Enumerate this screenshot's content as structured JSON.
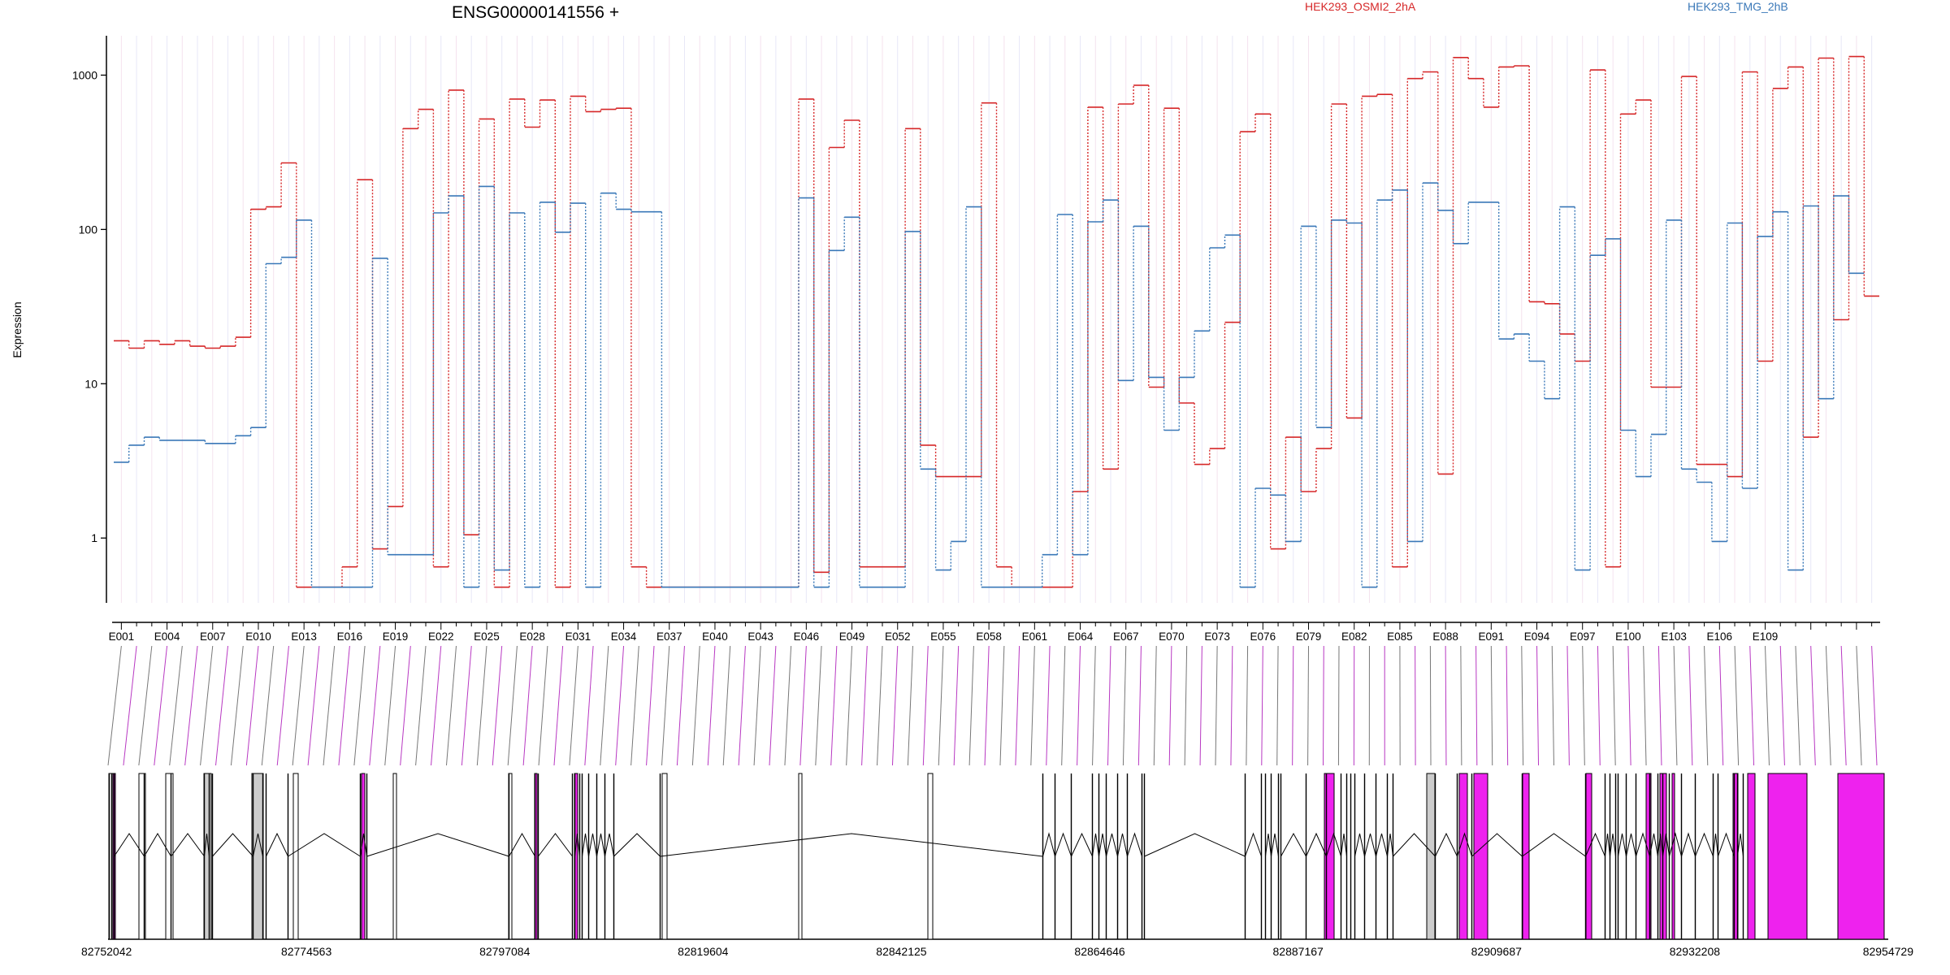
{
  "chart_data": {
    "type": "line",
    "title": "ENSG00000141556 +",
    "ylabel": "Expression",
    "xlabel": "",
    "y_scale": "log",
    "ylim": [
      0.38,
      1800
    ],
    "y_ticks": [
      1,
      10,
      100,
      1000
    ],
    "y_tick_labels": [
      "1",
      "10",
      "100",
      "1000"
    ],
    "x_tick_labels": [
      "E001",
      "E004",
      "E007",
      "E010",
      "E013",
      "E016",
      "E019",
      "E022",
      "E025",
      "E028",
      "E031",
      "E034",
      "E037",
      "E040",
      "E043",
      "E046",
      "E049",
      "E052",
      "E055",
      "E058",
      "E061",
      "E064",
      "E067",
      "E070",
      "E073",
      "E076",
      "E079",
      "E082",
      "E085",
      "E088",
      "E091",
      "E094",
      "E097",
      "E100",
      "E103",
      "E106",
      "E109"
    ],
    "series": [
      {
        "name": "HEK293_OSMI2_2hA",
        "color": "#d62728",
        "values": [
          19,
          17,
          19,
          18,
          19,
          17.5,
          17,
          17.5,
          20,
          135,
          140,
          270,
          0.48,
          0.48,
          0.48,
          0.65,
          210,
          0.85,
          1.6,
          450,
          600,
          0.65,
          800,
          1.05,
          520,
          0.48,
          700,
          460,
          690,
          0.48,
          730,
          580,
          600,
          610,
          0.65,
          0.48,
          0.48,
          0.48,
          0.48,
          0.48,
          0.48,
          0.48,
          0.48,
          0.48,
          0.48,
          700,
          0.6,
          340,
          510,
          0.65,
          0.65,
          0.65,
          450,
          4,
          2.5,
          2.5,
          2.5,
          660,
          0.65,
          0.48,
          0.48,
          0.48,
          0.48,
          2,
          620,
          2.8,
          650,
          860,
          9.5,
          610,
          7.5,
          3,
          3.8,
          25,
          430,
          560,
          0.85,
          4.5,
          2,
          3.8,
          650,
          6,
          730,
          750,
          0.65,
          950,
          1050,
          2.6,
          1300,
          950,
          620,
          1130,
          1150,
          34,
          33,
          21,
          14,
          1080,
          0.65,
          560,
          690,
          9.5,
          9.5,
          980,
          3,
          3,
          2.5,
          1050,
          14,
          820,
          1130,
          4.5,
          1290,
          26,
          1320,
          37
        ]
      },
      {
        "name": "HEK293_TMG_2hB",
        "color": "#3a78b8",
        "values": [
          3.1,
          4,
          4.5,
          4.3,
          4.3,
          4.3,
          4.1,
          4.1,
          4.6,
          5.2,
          60,
          66,
          115,
          0.48,
          0.48,
          0.48,
          0.48,
          65,
          0.78,
          0.78,
          0.78,
          128,
          165,
          0.48,
          190,
          0.62,
          128,
          0.48,
          150,
          96,
          148,
          0.48,
          172,
          135,
          130,
          130,
          0.48,
          0.48,
          0.48,
          0.48,
          0.48,
          0.48,
          0.48,
          0.48,
          0.48,
          160,
          0.48,
          73,
          120,
          0.48,
          0.48,
          0.48,
          97,
          2.8,
          0.62,
          0.95,
          140,
          0.48,
          0.48,
          0.48,
          0.48,
          0.78,
          125,
          0.78,
          112,
          155,
          10.5,
          105,
          11,
          5,
          11,
          22,
          76,
          92,
          0.48,
          2.1,
          1.9,
          0.95,
          105,
          5.2,
          115,
          110,
          0.48,
          155,
          180,
          0.95,
          200,
          133,
          81,
          150,
          150,
          19.5,
          21,
          14,
          8,
          140,
          0.62,
          68,
          87,
          5,
          2.5,
          4.7,
          115,
          2.8,
          2.3,
          0.95,
          110,
          2.1,
          90,
          130,
          0.62,
          142,
          8,
          165,
          52
        ]
      }
    ],
    "gene_coordinates": [
      "82752042",
      "82774563",
      "82797084",
      "82819604",
      "82842125",
      "82864646",
      "82887167",
      "82909687",
      "82932208",
      "82954729"
    ],
    "gene_model_colors": {
      "default": "#ffffff",
      "highlight": "#ee22ee",
      "shaded": "#cccccc"
    }
  }
}
